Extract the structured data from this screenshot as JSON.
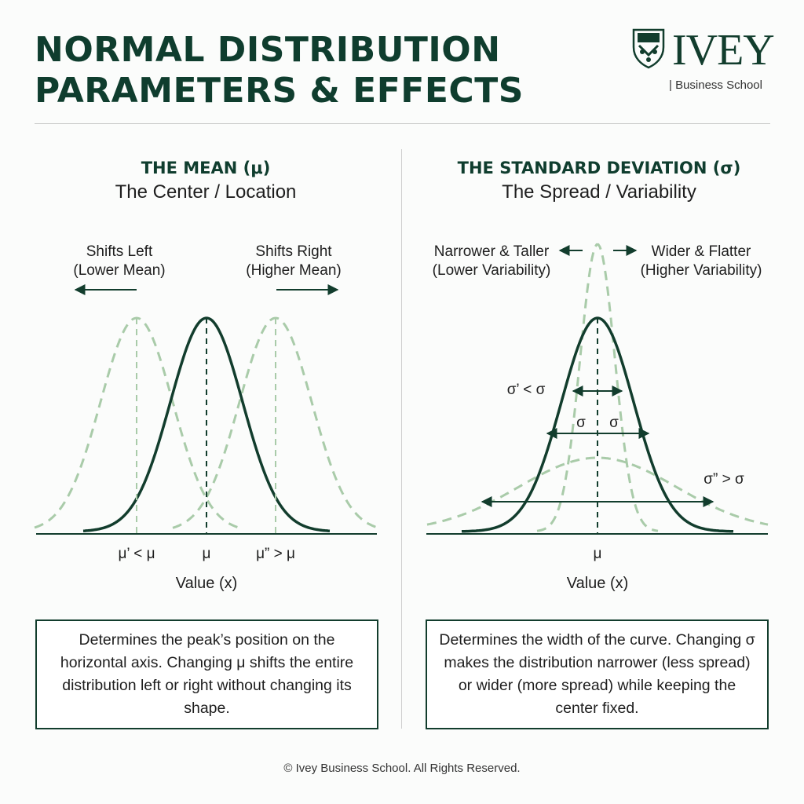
{
  "header": {
    "title_line1": "NORMAL DISTRIBUTION",
    "title_line2": "PARAMETERS & EFFECTS",
    "logo_word": "IVEY",
    "logo_sub": "| Business School"
  },
  "colors": {
    "primary": "#123d2d",
    "faded": "#a9cba9",
    "text": "#1e1e1e"
  },
  "mean_panel": {
    "heading": "THE MEAN (μ)",
    "subheading": "The Center / Location",
    "left_label_1": "Shifts Left",
    "left_label_2": "(Lower Mean)",
    "right_label_1": "Shifts Right",
    "right_label_2": "(Higher Mean)",
    "tick_left": "μ’ < μ",
    "tick_center": "μ",
    "tick_right": "μ” > μ",
    "axis_label": "Value (x)",
    "description": "Determines the peak’s position on the horizontal axis. Changing μ shifts the entire distribution left or right without changing its shape."
  },
  "sd_panel": {
    "heading": "THE STANDARD DEVIATION (σ)",
    "subheading": "The Spread / Variability",
    "left_label_1": "Narrower & Taller",
    "left_label_2": "(Lower Variability)",
    "right_label_1": "Wider & Flatter",
    "right_label_2": "(Higher Variability)",
    "narrow_label": "σ’ < σ",
    "sigma_left": "σ",
    "sigma_right": "σ",
    "wide_label": "σ” > σ",
    "tick_center": "μ",
    "axis_label": "Value (x)",
    "description": "Determines the width of the curve. Changing σ makes the distribution narrower (less spread) or wider (more spread) while keeping the center fixed."
  },
  "footer": "© Ivey Business School. All Rights Reserved."
}
